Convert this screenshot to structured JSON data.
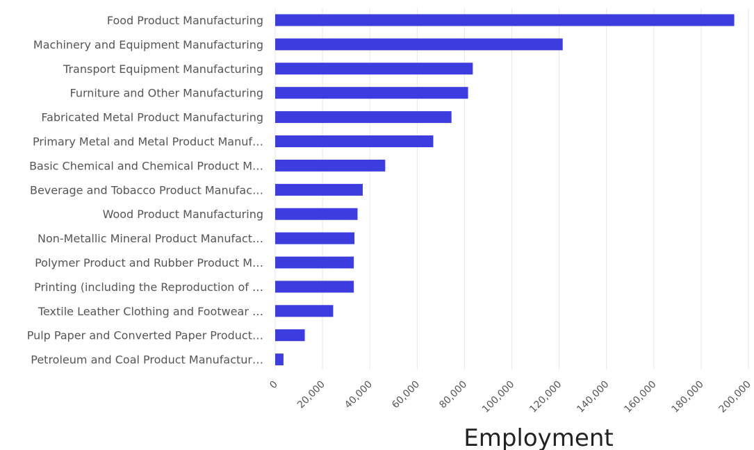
{
  "chart_data": {
    "type": "bar",
    "orientation": "horizontal",
    "categories": [
      "Food Product Manufacturing",
      "Machinery and Equipment Manufacturing",
      "Transport Equipment Manufacturing",
      "Furniture and Other Manufacturing",
      "Fabricated Metal Product Manufacturing",
      "Primary Metal and Metal Product Manuf…",
      "Basic Chemical and Chemical Product M…",
      "Beverage and Tobacco Product Manufac…",
      "Wood Product Manufacturing",
      "Non-Metallic Mineral Product Manufact…",
      "Polymer Product and Rubber Product M…",
      "Printing (including the Reproduction of …",
      "Textile Leather Clothing and Footwear …",
      "Pulp Paper and Converted Paper Product…",
      "Petroleum and Coal Product Manufactur…"
    ],
    "values": [
      194000,
      121500,
      83500,
      81500,
      74500,
      66800,
      46500,
      37000,
      34800,
      33500,
      33200,
      33200,
      24500,
      12500,
      3500
    ],
    "xlabel": "Employment",
    "xlim": [
      0,
      200000
    ],
    "xticks": [
      "0",
      "20,000",
      "40,000",
      "60,000",
      "80,000",
      "100,000",
      "120,000",
      "140,000",
      "160,000",
      "180,000",
      "200,000"
    ],
    "grid": true,
    "bar_color": "#3d3ddf",
    "grid_color": "#e6e6e6"
  }
}
